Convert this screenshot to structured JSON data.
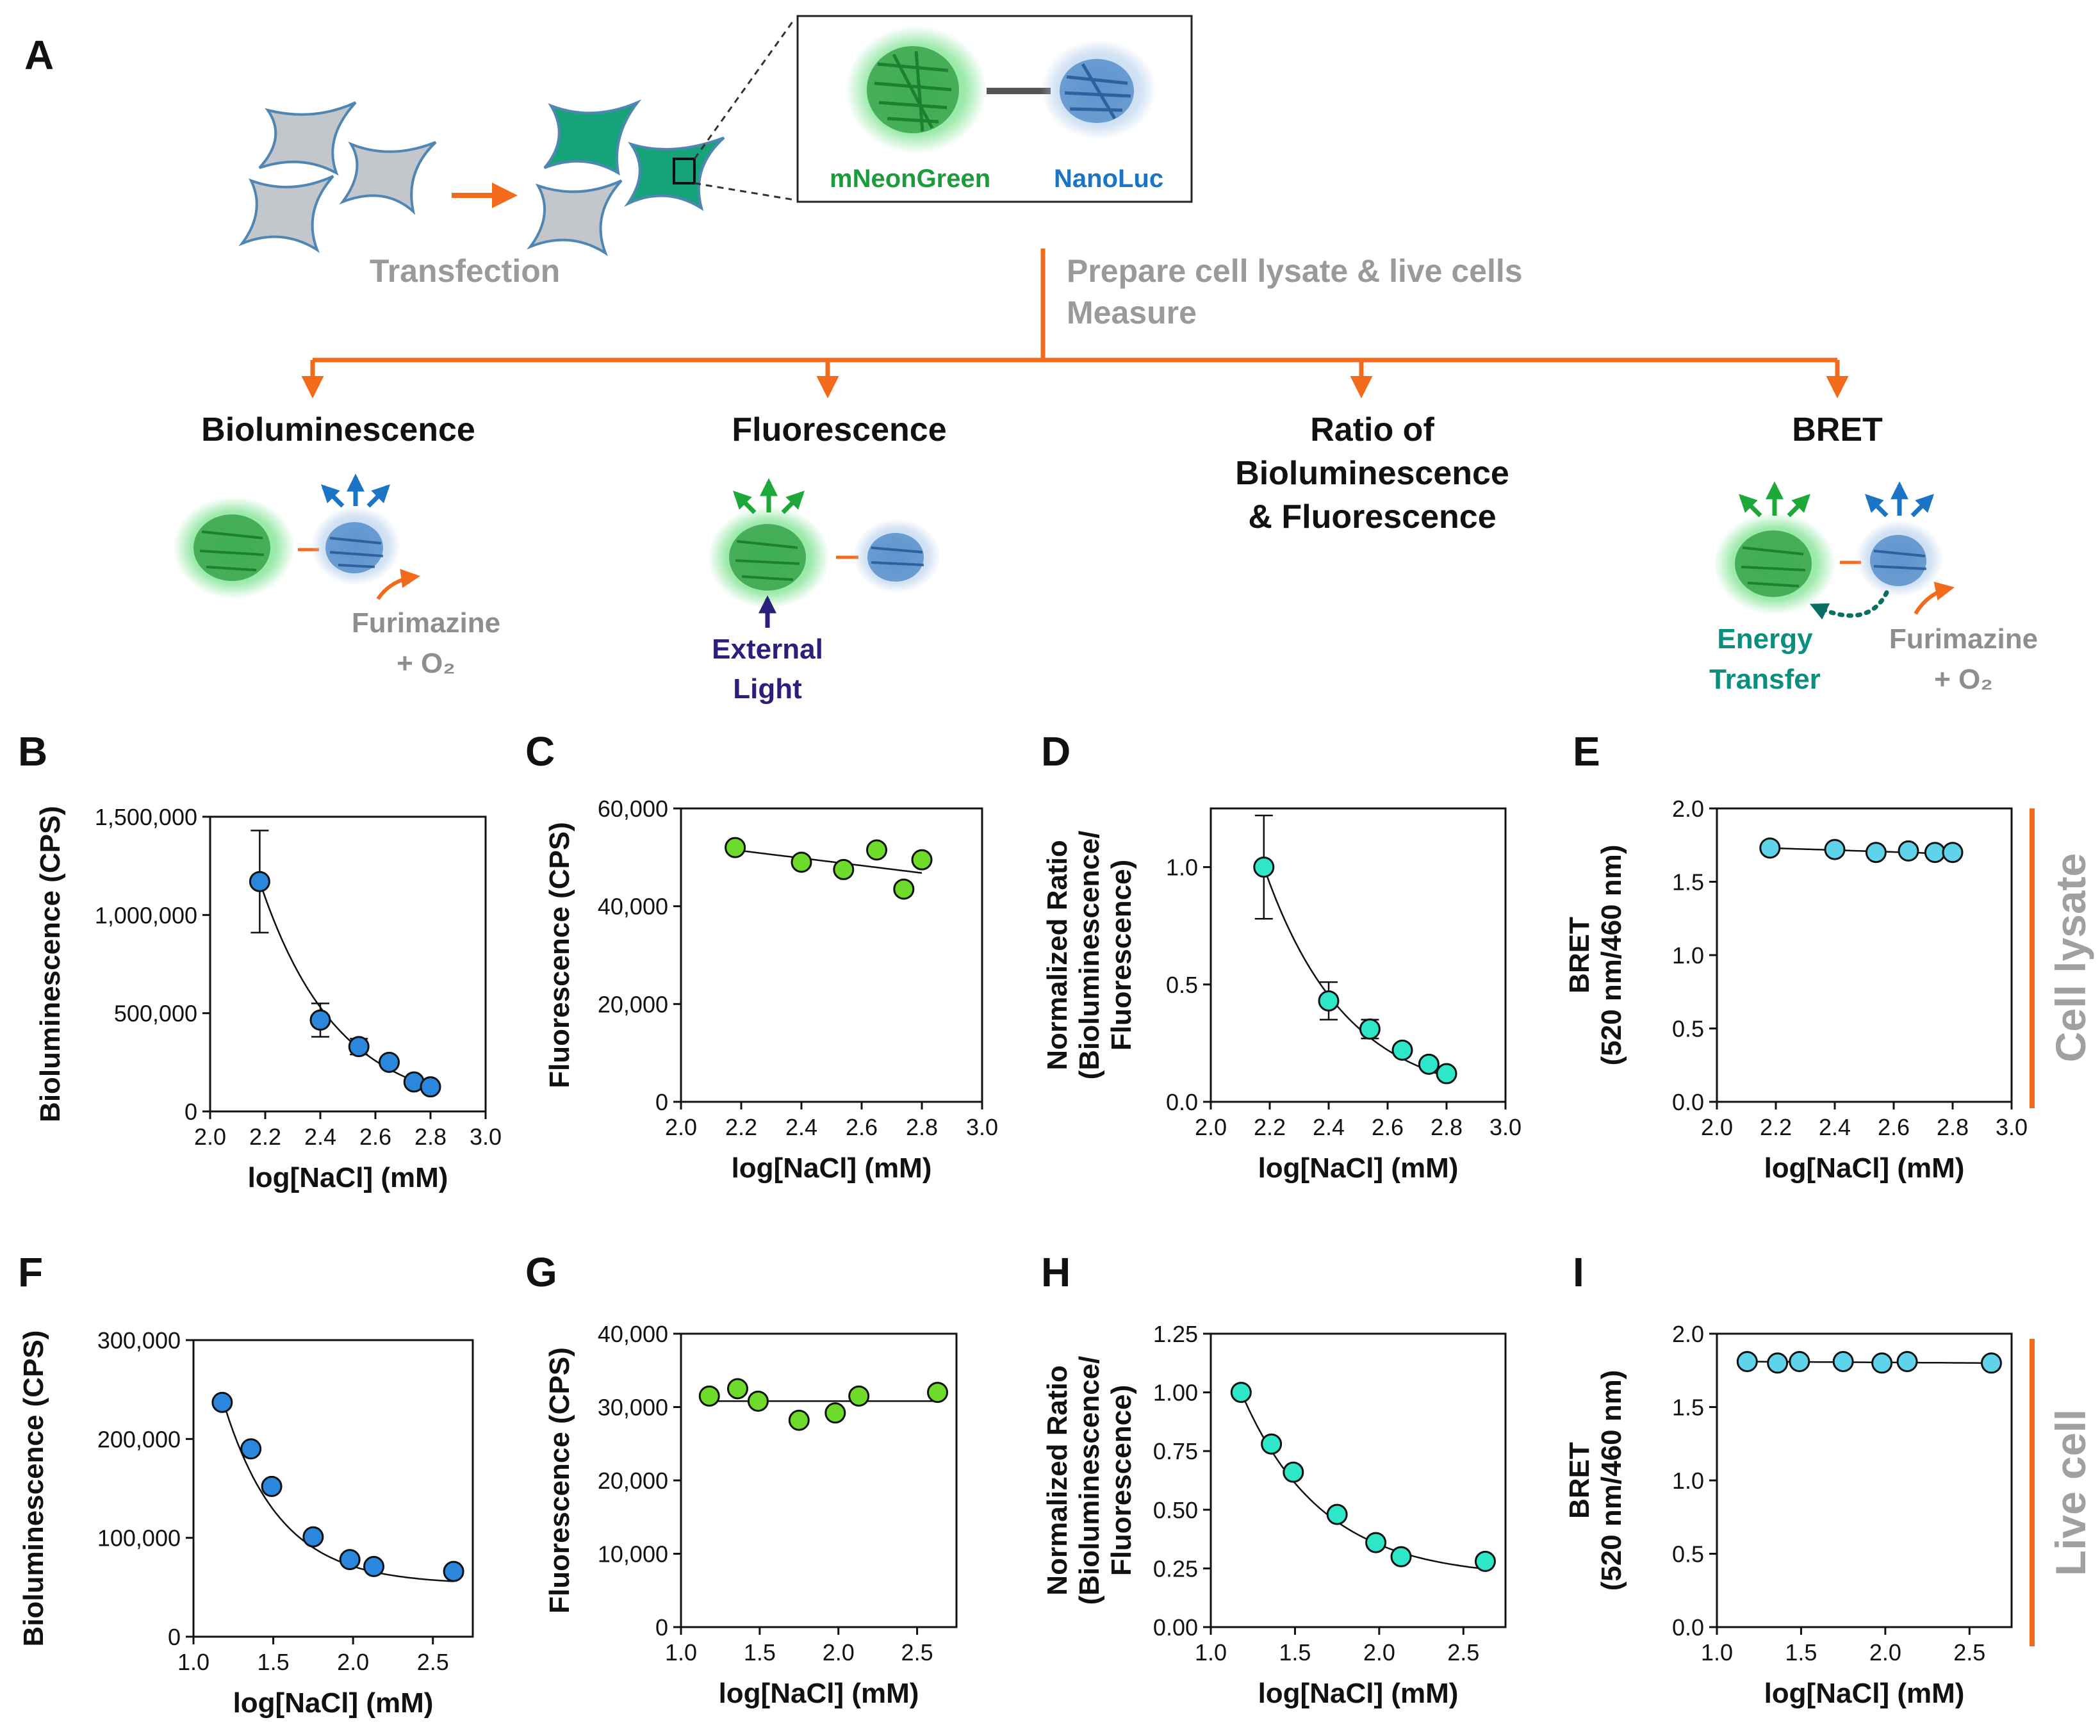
{
  "panel_a": {
    "letter": "A",
    "transfection_label": "Transfection",
    "fusion_labels": {
      "green": "mNeonGreen",
      "blue": "NanoLuc"
    },
    "prepare_line1": "Prepare cell lysate & live cells",
    "prepare_line2": "Measure",
    "branches": {
      "bioluminescence": {
        "title": "Bioluminescence",
        "sub1": "Furimazine",
        "sub2": "+ O₂"
      },
      "fluorescence": {
        "title": "Fluorescence",
        "sub1": "External",
        "sub2": "Light"
      },
      "ratio": {
        "title1": "Ratio of",
        "title2": "Bioluminescence",
        "title3": "& Fluorescence"
      },
      "bret": {
        "title": "BRET",
        "energy1": "Energy",
        "energy2": "Transfer",
        "sub1": "Furimazine",
        "sub2": "+ O₂"
      }
    },
    "colors": {
      "orange": "#f26b1d",
      "green": "#1a9c3a",
      "blue": "#1b74c4",
      "cell_gray": "#c3c7cc",
      "cell_green": "#17a37a"
    }
  },
  "side_labels": {
    "top": "Cell lysate",
    "bottom": "Live cell"
  },
  "chart_data": [
    {
      "letter": "B",
      "type": "scatter",
      "color": "#2b86de",
      "xlabel": "log[NaCl] (mM)",
      "ylabel": [
        "Bioluminescence (CPS)"
      ],
      "xlim": [
        2.0,
        3.0
      ],
      "ylim": [
        0,
        1500000
      ],
      "xticks": [
        2.0,
        2.2,
        2.4,
        2.6,
        2.8,
        3.0
      ],
      "xticklabels": [
        "2.0",
        "2.2",
        "2.4",
        "2.6",
        "2.8",
        "3.0"
      ],
      "yticks": [
        0,
        500000,
        1000000,
        1500000
      ],
      "yticklabels": [
        "0",
        "500,000",
        "1,000,000",
        "1,500,000"
      ],
      "x": [
        2.18,
        2.4,
        2.54,
        2.65,
        2.74,
        2.8
      ],
      "y": [
        1170000,
        465000,
        330000,
        250000,
        150000,
        125000
      ],
      "err": [
        260000,
        85000,
        40000,
        0,
        0,
        0
      ],
      "fit": {
        "kind": "exp",
        "x": [
          2.18,
          2.8
        ],
        "a": 1170000,
        "k": 3.6
      }
    },
    {
      "letter": "C",
      "type": "scatter",
      "color": "#6edb2a",
      "xlabel": "log[NaCl] (mM)",
      "ylabel": [
        "Fluorescence (CPS)"
      ],
      "xlim": [
        2.0,
        3.0
      ],
      "ylim": [
        0,
        60000
      ],
      "xticks": [
        2.0,
        2.2,
        2.4,
        2.6,
        2.8,
        3.0
      ],
      "xticklabels": [
        "2.0",
        "2.2",
        "2.4",
        "2.6",
        "2.8",
        "3.0"
      ],
      "yticks": [
        0,
        20000,
        40000,
        60000
      ],
      "yticklabels": [
        "0",
        "20,000",
        "40,000",
        "60,000"
      ],
      "x": [
        2.18,
        2.4,
        2.54,
        2.65,
        2.74,
        2.8
      ],
      "y": [
        52000,
        49000,
        47500,
        51500,
        43500,
        49500
      ],
      "fit": {
        "kind": "line",
        "x": [
          2.18,
          2.8
        ],
        "y": [
          51500,
          46800
        ]
      }
    },
    {
      "letter": "D",
      "type": "scatter",
      "color": "#2ee6c8",
      "xlabel": "log[NaCl] (mM)",
      "ylabel": [
        "Normalized Ratio",
        "(Bioluminescence/",
        "Fluorescence)"
      ],
      "xlim": [
        2.0,
        3.0
      ],
      "ylim": [
        0.0,
        1.25
      ],
      "xticks": [
        2.0,
        2.2,
        2.4,
        2.6,
        2.8,
        3.0
      ],
      "xticklabels": [
        "2.0",
        "2.2",
        "2.4",
        "2.6",
        "2.8",
        "3.0"
      ],
      "yticks": [
        0.0,
        0.5,
        1.0
      ],
      "yticklabels": [
        "0.0",
        "0.5",
        "1.0"
      ],
      "x": [
        2.18,
        2.4,
        2.54,
        2.65,
        2.74,
        2.8
      ],
      "y": [
        1.0,
        0.43,
        0.31,
        0.22,
        0.16,
        0.12
      ],
      "err": [
        0.22,
        0.08,
        0.04,
        0,
        0,
        0
      ],
      "fit": {
        "kind": "exp",
        "x": [
          2.18,
          2.8
        ],
        "a": 1.0,
        "k": 3.6
      }
    },
    {
      "letter": "E",
      "type": "scatter",
      "color": "#5fd3ea",
      "xlabel": "log[NaCl] (mM)",
      "ylabel": [
        "BRET",
        "(520 nm/460 nm)"
      ],
      "xlim": [
        2.0,
        3.0
      ],
      "ylim": [
        0.0,
        2.0
      ],
      "xticks": [
        2.0,
        2.2,
        2.4,
        2.6,
        2.8,
        3.0
      ],
      "xticklabels": [
        "2.0",
        "2.2",
        "2.4",
        "2.6",
        "2.8",
        "3.0"
      ],
      "yticks": [
        0.0,
        0.5,
        1.0,
        1.5,
        2.0
      ],
      "yticklabels": [
        "0.0",
        "0.5",
        "1.0",
        "1.5",
        "2.0"
      ],
      "x": [
        2.18,
        2.4,
        2.54,
        2.65,
        2.74,
        2.8
      ],
      "y": [
        1.73,
        1.72,
        1.7,
        1.71,
        1.7,
        1.7
      ],
      "fit": {
        "kind": "line",
        "x": [
          2.18,
          2.8
        ],
        "y": [
          1.73,
          1.69
        ]
      }
    },
    {
      "letter": "F",
      "type": "scatter",
      "color": "#2b86de",
      "xlabel": "log[NaCl] (mM)",
      "ylabel": [
        "Bioluminescence (CPS)"
      ],
      "xlim": [
        1.0,
        2.75
      ],
      "ylim": [
        0,
        300000
      ],
      "xticks": [
        1.0,
        1.5,
        2.0,
        2.5
      ],
      "xticklabels": [
        "1.0",
        "1.5",
        "2.0",
        "2.5"
      ],
      "yticks": [
        0,
        100000,
        200000,
        300000
      ],
      "yticklabels": [
        "0",
        "100,000",
        "200,000",
        "300,000"
      ],
      "x": [
        1.18,
        1.36,
        1.49,
        1.75,
        1.98,
        2.13,
        2.63
      ],
      "y": [
        237000,
        190000,
        152000,
        101000,
        78000,
        71000,
        66000
      ],
      "fit": {
        "kind": "expoff",
        "x": [
          1.18,
          2.63
        ],
        "a": 188000,
        "k": 2.85,
        "c": 53000
      }
    },
    {
      "letter": "G",
      "type": "scatter",
      "color": "#6edb2a",
      "xlabel": "log[NaCl] (mM)",
      "ylabel": [
        "Fluorescence (CPS)"
      ],
      "xlim": [
        1.0,
        2.75
      ],
      "ylim": [
        0,
        40000
      ],
      "xticks": [
        1.0,
        1.5,
        2.0,
        2.5
      ],
      "xticklabels": [
        "1.0",
        "1.5",
        "2.0",
        "2.5"
      ],
      "yticks": [
        0,
        10000,
        20000,
        30000,
        40000
      ],
      "yticklabels": [
        "0",
        "10,000",
        "20,000",
        "30,000",
        "40,000"
      ],
      "x": [
        1.18,
        1.36,
        1.49,
        1.75,
        1.98,
        2.13,
        2.63
      ],
      "y": [
        31500,
        32500,
        30800,
        28200,
        29200,
        31500,
        32000
      ],
      "fit": {
        "kind": "line",
        "x": [
          1.18,
          2.63
        ],
        "y": [
          30800,
          30800
        ]
      }
    },
    {
      "letter": "H",
      "type": "scatter",
      "color": "#2ee6c8",
      "xlabel": "log[NaCl] (mM)",
      "ylabel": [
        "Normalized Ratio",
        "(Bioluminescence/",
        "Fluorescence)"
      ],
      "xlim": [
        1.0,
        2.75
      ],
      "ylim": [
        0.0,
        1.25
      ],
      "xticks": [
        1.0,
        1.5,
        2.0,
        2.5
      ],
      "xticklabels": [
        "1.0",
        "1.5",
        "2.0",
        "2.5"
      ],
      "yticks": [
        0.0,
        0.25,
        0.5,
        0.75,
        1.0,
        1.25
      ],
      "yticklabels": [
        "0.00",
        "0.25",
        "0.50",
        "0.75",
        "1.00",
        "1.25"
      ],
      "x": [
        1.18,
        1.36,
        1.49,
        1.75,
        1.98,
        2.13,
        2.63
      ],
      "y": [
        1.0,
        0.78,
        0.66,
        0.48,
        0.36,
        0.3,
        0.28
      ],
      "fit": {
        "kind": "expoff",
        "x": [
          1.18,
          2.63
        ],
        "a": 0.79,
        "k": 2.1,
        "c": 0.21
      }
    },
    {
      "letter": "I",
      "type": "scatter",
      "color": "#5fd3ea",
      "xlabel": "log[NaCl] (mM)",
      "ylabel": [
        "BRET",
        "(520 nm/460 nm)"
      ],
      "xlim": [
        1.0,
        2.75
      ],
      "ylim": [
        0.0,
        2.0
      ],
      "xticks": [
        1.0,
        1.5,
        2.0,
        2.5
      ],
      "xticklabels": [
        "1.0",
        "1.5",
        "2.0",
        "2.5"
      ],
      "yticks": [
        0.0,
        0.5,
        1.0,
        1.5,
        2.0
      ],
      "yticklabels": [
        "0.0",
        "0.5",
        "1.0",
        "1.5",
        "2.0"
      ],
      "x": [
        1.18,
        1.36,
        1.49,
        1.75,
        1.98,
        2.13,
        2.63
      ],
      "y": [
        1.81,
        1.8,
        1.81,
        1.81,
        1.8,
        1.81,
        1.8
      ],
      "fit": {
        "kind": "line",
        "x": [
          1.18,
          2.63
        ],
        "y": [
          1.81,
          1.8
        ]
      }
    }
  ]
}
